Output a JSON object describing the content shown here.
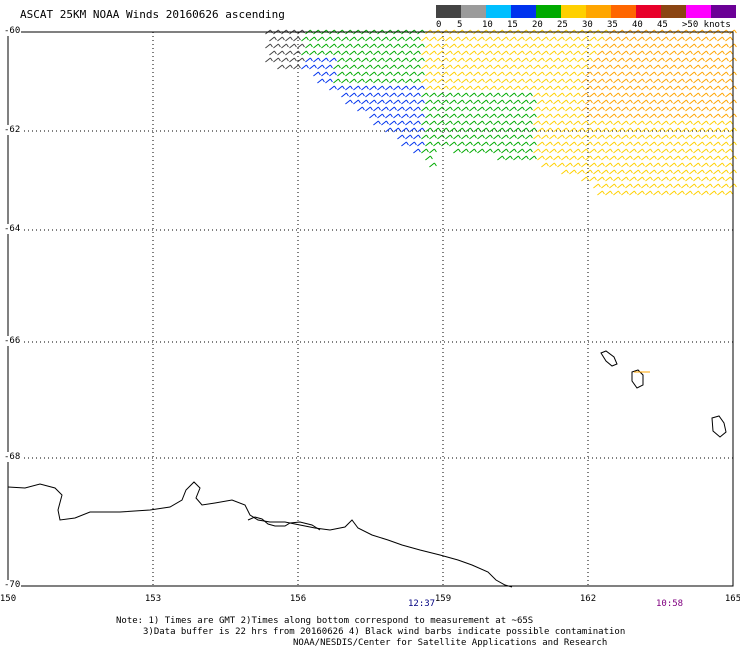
{
  "title": "ASCAT 25KM NOAA Winds 20160626 ascending",
  "legend": {
    "colors": [
      "#444444",
      "#9b9b9b",
      "#00bfff",
      "#0033ee",
      "#00aa00",
      "#ffd000",
      "#ffa500",
      "#ff6600",
      "#e8002a",
      "#8b4513",
      "#ff00ff",
      "#6b0096"
    ],
    "labels": [
      "0",
      "5",
      "10",
      "15",
      "20",
      "25",
      "30",
      "35",
      "40",
      "45",
      ">50 knots"
    ]
  },
  "axes": {
    "x_ticks": [
      "150",
      "153",
      "156",
      "159",
      "162",
      "165"
    ],
    "y_ticks": [
      "-60",
      "-62",
      "-64",
      "-66",
      "-68",
      "-70"
    ]
  },
  "times": [
    {
      "label": "12:37",
      "color": "#000080"
    },
    {
      "label": "10:58",
      "color": "#800080"
    }
  ],
  "note": {
    "line1": "Note: 1) Times are GMT 2)Times along bottom correspond to measurement at ~65S",
    "line2": "3)Data buffer is 22 hrs from 20160626 4) Black wind barbs indicate possible contamination",
    "line3": "NOAA/NESDIS/Center for Satellite Applications and Research"
  },
  "map_data": {
    "lon_range": [
      150,
      165
    ],
    "lat_range": [
      -70,
      -60
    ],
    "grid": true,
    "wind_swath": {
      "speed_bands_knots": [
        {
          "color": "#444444",
          "label": "contaminated",
          "region": "far west edge near -60.2"
        },
        {
          "color": "#0033ee",
          "label": "15",
          "region": "155.5-159 lon, -61 to -62"
        },
        {
          "color": "#00aa00",
          "label": "20",
          "region": "158-162 lon, -60 to -62.5"
        },
        {
          "color": "#ffd000",
          "label": "25",
          "region": "159-165 lon, -60 to -63"
        },
        {
          "color": "#ffa500",
          "label": "30",
          "region": "161-165 lon, -60 to -62"
        }
      ]
    }
  }
}
